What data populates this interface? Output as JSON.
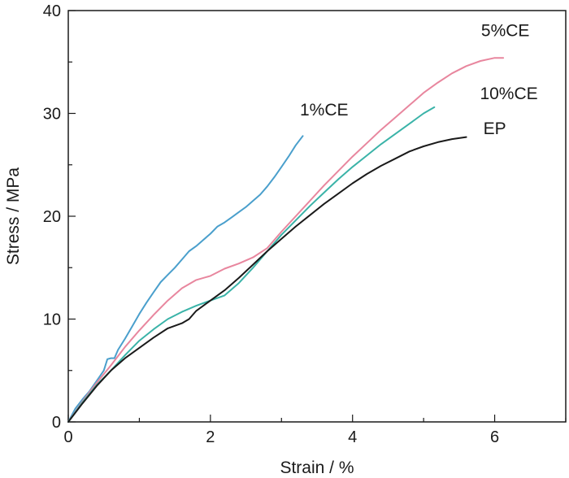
{
  "chart_data": {
    "type": "line",
    "title": "",
    "xlabel": "Strain / %",
    "ylabel": "Stress / MPa",
    "xlim": [
      0,
      7
    ],
    "ylim": [
      0,
      40
    ],
    "xticks": [
      0,
      2,
      4,
      6
    ],
    "yticks": [
      0,
      10,
      20,
      30,
      40
    ],
    "x_minor_step": 1,
    "y_minor_step": 5,
    "grid": false,
    "legend": "none",
    "series": [
      {
        "name": "1%CE",
        "color": "#4a9fcc",
        "points": [
          [
            0,
            0
          ],
          [
            0.1,
            1.3
          ],
          [
            0.2,
            2.2
          ],
          [
            0.3,
            3.0
          ],
          [
            0.4,
            4.0
          ],
          [
            0.5,
            5.0
          ],
          [
            0.55,
            6.1
          ],
          [
            0.6,
            6.2
          ],
          [
            0.65,
            6.2
          ],
          [
            0.7,
            7.0
          ],
          [
            0.8,
            8.1
          ],
          [
            0.9,
            9.3
          ],
          [
            1.0,
            10.5
          ],
          [
            1.1,
            11.6
          ],
          [
            1.2,
            12.6
          ],
          [
            1.3,
            13.6
          ],
          [
            1.4,
            14.3
          ],
          [
            1.5,
            15.0
          ],
          [
            1.6,
            15.8
          ],
          [
            1.7,
            16.6
          ],
          [
            1.8,
            17.1
          ],
          [
            1.9,
            17.7
          ],
          [
            2.0,
            18.3
          ],
          [
            2.1,
            19.0
          ],
          [
            2.2,
            19.4
          ],
          [
            2.3,
            19.9
          ],
          [
            2.4,
            20.4
          ],
          [
            2.5,
            20.9
          ],
          [
            2.6,
            21.5
          ],
          [
            2.7,
            22.1
          ],
          [
            2.8,
            22.9
          ],
          [
            2.9,
            23.8
          ],
          [
            3.0,
            24.8
          ],
          [
            3.1,
            25.8
          ],
          [
            3.2,
            26.9
          ],
          [
            3.3,
            27.8
          ]
        ]
      },
      {
        "name": "5%CE",
        "color": "#e8869e",
        "points": [
          [
            0,
            0
          ],
          [
            0.2,
            2.0
          ],
          [
            0.4,
            3.8
          ],
          [
            0.6,
            5.5
          ],
          [
            0.8,
            7.3
          ],
          [
            1.0,
            8.9
          ],
          [
            1.2,
            10.4
          ],
          [
            1.4,
            11.8
          ],
          [
            1.6,
            13.0
          ],
          [
            1.8,
            13.8
          ],
          [
            2.0,
            14.2
          ],
          [
            2.2,
            14.9
          ],
          [
            2.4,
            15.4
          ],
          [
            2.6,
            16.0
          ],
          [
            2.8,
            16.9
          ],
          [
            3.0,
            18.5
          ],
          [
            3.2,
            20.0
          ],
          [
            3.4,
            21.5
          ],
          [
            3.6,
            23.0
          ],
          [
            3.8,
            24.4
          ],
          [
            4.0,
            25.8
          ],
          [
            4.2,
            27.1
          ],
          [
            4.4,
            28.4
          ],
          [
            4.6,
            29.6
          ],
          [
            4.8,
            30.8
          ],
          [
            5.0,
            32.0
          ],
          [
            5.2,
            33.0
          ],
          [
            5.4,
            33.9
          ],
          [
            5.6,
            34.6
          ],
          [
            5.8,
            35.1
          ],
          [
            6.0,
            35.4
          ],
          [
            6.12,
            35.4
          ]
        ]
      },
      {
        "name": "10%CE",
        "color": "#3ab3a8",
        "points": [
          [
            0,
            0
          ],
          [
            0.2,
            1.9
          ],
          [
            0.4,
            3.6
          ],
          [
            0.6,
            5.0
          ],
          [
            0.8,
            6.5
          ],
          [
            1.0,
            7.9
          ],
          [
            1.2,
            9.0
          ],
          [
            1.4,
            10.0
          ],
          [
            1.6,
            10.7
          ],
          [
            1.8,
            11.3
          ],
          [
            2.0,
            11.8
          ],
          [
            2.2,
            12.3
          ],
          [
            2.4,
            13.5
          ],
          [
            2.6,
            15.0
          ],
          [
            2.8,
            16.6
          ],
          [
            3.0,
            18.2
          ],
          [
            3.2,
            19.6
          ],
          [
            3.4,
            21.0
          ],
          [
            3.6,
            22.3
          ],
          [
            3.8,
            23.6
          ],
          [
            4.0,
            24.8
          ],
          [
            4.2,
            25.9
          ],
          [
            4.4,
            27.0
          ],
          [
            4.6,
            28.0
          ],
          [
            4.8,
            29.0
          ],
          [
            5.0,
            30.0
          ],
          [
            5.15,
            30.6
          ]
        ]
      },
      {
        "name": "EP",
        "color": "#1a1a1a",
        "points": [
          [
            0,
            0
          ],
          [
            0.2,
            1.8
          ],
          [
            0.4,
            3.5
          ],
          [
            0.6,
            5.0
          ],
          [
            0.8,
            6.2
          ],
          [
            1.0,
            7.2
          ],
          [
            1.2,
            8.2
          ],
          [
            1.4,
            9.1
          ],
          [
            1.6,
            9.6
          ],
          [
            1.7,
            10.0
          ],
          [
            1.8,
            10.8
          ],
          [
            2.0,
            11.8
          ],
          [
            2.2,
            12.8
          ],
          [
            2.4,
            14.0
          ],
          [
            2.6,
            15.3
          ],
          [
            2.8,
            16.6
          ],
          [
            3.0,
            17.8
          ],
          [
            3.2,
            19.0
          ],
          [
            3.4,
            20.1
          ],
          [
            3.6,
            21.2
          ],
          [
            3.8,
            22.2
          ],
          [
            4.0,
            23.2
          ],
          [
            4.2,
            24.1
          ],
          [
            4.4,
            24.9
          ],
          [
            4.6,
            25.6
          ],
          [
            4.8,
            26.3
          ],
          [
            5.0,
            26.8
          ],
          [
            5.2,
            27.2
          ],
          [
            5.4,
            27.5
          ],
          [
            5.6,
            27.7
          ]
        ]
      }
    ],
    "annotations": [
      {
        "text": "1%CE",
        "x": 3.6,
        "y": 29.8,
        "series": "1%CE"
      },
      {
        "text": "5%CE",
        "x": 6.15,
        "y": 37.5,
        "series": "5%CE"
      },
      {
        "text": "10%CE",
        "x": 6.2,
        "y": 31.4,
        "series": "10%CE"
      },
      {
        "text": "EP",
        "x": 6.0,
        "y": 28.0,
        "series": "EP"
      }
    ]
  }
}
